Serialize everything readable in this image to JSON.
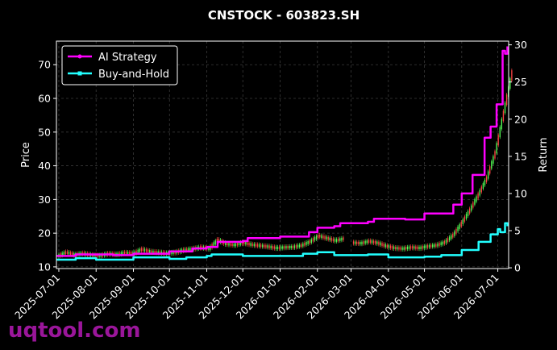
{
  "watermark": "uqtool.com",
  "chart_data": {
    "type": "line",
    "title": "CNSTOCK - 603823.SH",
    "xlabel": "",
    "ylabel": "Price",
    "ylabel_right": "Return",
    "x_type": "date",
    "xlim": [
      "2025-06-29",
      "2026-07-10"
    ],
    "ylim": [
      9.5,
      77
    ],
    "ylim_right": [
      -0.1,
      30.5
    ],
    "xticks": [
      "2025-07-01",
      "2025-08-01",
      "2025-09-01",
      "2025-10-01",
      "2025-11-01",
      "2025-12-01",
      "2026-01-01",
      "2026-02-01",
      "2026-03-01",
      "2026-04-01",
      "2026-05-01",
      "2026-06-01",
      "2026-07-01"
    ],
    "yticks": [
      10,
      20,
      30,
      40,
      50,
      60,
      70
    ],
    "yticks_right": [
      0,
      5,
      10,
      15,
      20,
      25,
      30
    ],
    "grid": true,
    "legend_position": "upper-left",
    "colors": {
      "up": "#55ff55",
      "down": "#ff4444",
      "ai": "#ff00ff",
      "bh": "#22ffff",
      "bg": "#000000"
    },
    "candles": [
      {
        "date": "2025-07-01",
        "open": 13.2,
        "close": 14.3
      },
      {
        "date": "2025-07-08",
        "open": 14.3,
        "close": 13.6
      },
      {
        "date": "2025-07-15",
        "open": 13.6,
        "close": 14.0
      },
      {
        "date": "2025-07-22",
        "open": 14.0,
        "close": 13.5
      },
      {
        "date": "2025-07-29",
        "open": 13.5,
        "close": 13.3
      },
      {
        "date": "2025-08-05",
        "open": 13.3,
        "close": 13.9
      },
      {
        "date": "2025-08-12",
        "open": 13.9,
        "close": 13.7
      },
      {
        "date": "2025-08-19",
        "open": 13.7,
        "close": 14.2
      },
      {
        "date": "2025-08-26",
        "open": 14.2,
        "close": 14.0
      },
      {
        "date": "2025-09-02",
        "open": 14.0,
        "close": 15.2
      },
      {
        "date": "2025-09-09",
        "open": 15.2,
        "close": 14.5
      },
      {
        "date": "2025-09-16",
        "open": 14.5,
        "close": 14.3
      },
      {
        "date": "2025-09-23",
        "open": 14.3,
        "close": 14.0
      },
      {
        "date": "2025-09-30",
        "open": 14.0,
        "close": 14.3
      },
      {
        "date": "2025-10-07",
        "open": 14.3,
        "close": 15.0
      },
      {
        "date": "2025-10-14",
        "open": 15.0,
        "close": 15.3
      },
      {
        "date": "2025-10-21",
        "open": 15.3,
        "close": 15.8
      },
      {
        "date": "2025-10-28",
        "open": 15.8,
        "close": 15.4
      },
      {
        "date": "2025-11-04",
        "open": 15.4,
        "close": 18.0
      },
      {
        "date": "2025-11-11",
        "open": 18.0,
        "close": 16.8
      },
      {
        "date": "2025-11-18",
        "open": 16.8,
        "close": 16.5
      },
      {
        "date": "2025-11-25",
        "open": 16.5,
        "close": 17.2
      },
      {
        "date": "2025-12-02",
        "open": 17.2,
        "close": 16.6
      },
      {
        "date": "2025-12-09",
        "open": 16.6,
        "close": 16.3
      },
      {
        "date": "2025-12-16",
        "open": 16.3,
        "close": 16.0
      },
      {
        "date": "2025-12-23",
        "open": 16.0,
        "close": 15.6
      },
      {
        "date": "2025-12-30",
        "open": 15.6,
        "close": 15.8
      },
      {
        "date": "2026-01-06",
        "open": 15.8,
        "close": 15.9
      },
      {
        "date": "2026-01-13",
        "open": 15.9,
        "close": 16.4
      },
      {
        "date": "2026-01-20",
        "open": 16.4,
        "close": 17.5
      },
      {
        "date": "2026-01-27",
        "open": 17.5,
        "close": 19.2
      },
      {
        "date": "2026-02-03",
        "open": 19.2,
        "close": 18.5
      },
      {
        "date": "2026-02-10",
        "open": 18.5,
        "close": 17.8
      },
      {
        "date": "2026-02-17",
        "open": 17.8,
        "close": 18.4
      },
      {
        "date": "2026-03-03",
        "open": 17.2,
        "close": 17.0
      },
      {
        "date": "2026-03-10",
        "open": 17.0,
        "close": 17.6
      },
      {
        "date": "2026-03-17",
        "open": 17.6,
        "close": 17.1
      },
      {
        "date": "2026-03-24",
        "open": 17.1,
        "close": 16.2
      },
      {
        "date": "2026-03-31",
        "open": 16.2,
        "close": 15.6
      },
      {
        "date": "2026-04-07",
        "open": 15.6,
        "close": 15.4
      },
      {
        "date": "2026-04-14",
        "open": 15.4,
        "close": 15.8
      },
      {
        "date": "2026-04-21",
        "open": 15.8,
        "close": 15.6
      },
      {
        "date": "2026-04-28",
        "open": 15.6,
        "close": 16.1
      },
      {
        "date": "2026-05-05",
        "open": 16.1,
        "close": 16.4
      },
      {
        "date": "2026-05-12",
        "open": 16.4,
        "close": 17.3
      },
      {
        "date": "2026-05-19",
        "open": 17.3,
        "close": 19.5
      },
      {
        "date": "2026-05-26",
        "open": 19.5,
        "close": 23.0
      },
      {
        "date": "2026-06-02",
        "open": 23.0,
        "close": 27.0
      },
      {
        "date": "2026-06-09",
        "open": 27.0,
        "close": 31.5
      },
      {
        "date": "2026-06-16",
        "open": 31.5,
        "close": 36.5
      },
      {
        "date": "2026-06-23",
        "open": 36.5,
        "close": 44.0
      },
      {
        "date": "2026-06-30",
        "open": 44.0,
        "close": 56.0
      },
      {
        "date": "2026-07-07",
        "open": 56.0,
        "close": 68.0
      }
    ],
    "series": [
      {
        "name": "AI Strategy",
        "axis": "right",
        "values": [
          {
            "x": "2025-06-29",
            "y": 1.6
          },
          {
            "x": "2025-07-15",
            "y": 1.8
          },
          {
            "x": "2025-08-15",
            "y": 1.7
          },
          {
            "x": "2025-09-01",
            "y": 1.9
          },
          {
            "x": "2025-10-01",
            "y": 2.2
          },
          {
            "x": "2025-10-20",
            "y": 2.6
          },
          {
            "x": "2025-11-01",
            "y": 2.8
          },
          {
            "x": "2025-11-10",
            "y": 3.5
          },
          {
            "x": "2025-12-01",
            "y": 3.6
          },
          {
            "x": "2025-12-05",
            "y": 4.0
          },
          {
            "x": "2026-01-01",
            "y": 4.2
          },
          {
            "x": "2026-01-25",
            "y": 4.8
          },
          {
            "x": "2026-02-01",
            "y": 5.4
          },
          {
            "x": "2026-02-15",
            "y": 5.6
          },
          {
            "x": "2026-02-20",
            "y": 6.0
          },
          {
            "x": "2026-03-15",
            "y": 6.2
          },
          {
            "x": "2026-03-20",
            "y": 6.6
          },
          {
            "x": "2026-04-15",
            "y": 6.5
          },
          {
            "x": "2026-05-01",
            "y": 7.3
          },
          {
            "x": "2026-05-25",
            "y": 8.5
          },
          {
            "x": "2026-06-01",
            "y": 10.0
          },
          {
            "x": "2026-06-10",
            "y": 12.5
          },
          {
            "x": "2026-06-20",
            "y": 17.5
          },
          {
            "x": "2026-06-25",
            "y": 19.0
          },
          {
            "x": "2026-06-30",
            "y": 22.0
          },
          {
            "x": "2026-07-05",
            "y": 29.2
          },
          {
            "x": "2026-07-07",
            "y": 28.8
          },
          {
            "x": "2026-07-09",
            "y": 29.8
          }
        ]
      },
      {
        "name": "Buy-and-Hold",
        "axis": "right",
        "values": [
          {
            "x": "2025-06-29",
            "y": 1.1
          },
          {
            "x": "2025-07-15",
            "y": 1.3
          },
          {
            "x": "2025-08-01",
            "y": 1.1
          },
          {
            "x": "2025-09-01",
            "y": 1.4
          },
          {
            "x": "2025-10-01",
            "y": 1.2
          },
          {
            "x": "2025-10-15",
            "y": 1.4
          },
          {
            "x": "2025-11-01",
            "y": 1.6
          },
          {
            "x": "2025-11-05",
            "y": 1.8
          },
          {
            "x": "2025-12-01",
            "y": 1.6
          },
          {
            "x": "2026-01-01",
            "y": 1.6
          },
          {
            "x": "2026-01-20",
            "y": 1.9
          },
          {
            "x": "2026-02-01",
            "y": 2.1
          },
          {
            "x": "2026-02-15",
            "y": 1.7
          },
          {
            "x": "2026-03-01",
            "y": 1.7
          },
          {
            "x": "2026-03-15",
            "y": 1.8
          },
          {
            "x": "2026-04-01",
            "y": 1.4
          },
          {
            "x": "2026-05-01",
            "y": 1.5
          },
          {
            "x": "2026-05-15",
            "y": 1.7
          },
          {
            "x": "2026-06-01",
            "y": 2.4
          },
          {
            "x": "2026-06-15",
            "y": 3.5
          },
          {
            "x": "2026-06-25",
            "y": 4.5
          },
          {
            "x": "2026-07-01",
            "y": 5.2
          },
          {
            "x": "2026-07-03",
            "y": 4.8
          },
          {
            "x": "2026-07-07",
            "y": 6.0
          },
          {
            "x": "2026-07-09",
            "y": 5.6
          }
        ]
      }
    ]
  }
}
